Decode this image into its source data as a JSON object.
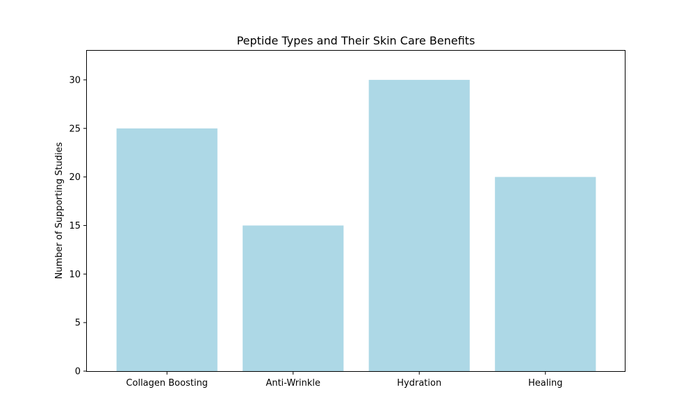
{
  "chart_data": {
    "type": "bar",
    "title": "Peptide Types and Their Skin Care Benefits",
    "xlabel": "",
    "ylabel": "Number of Supporting Studies",
    "categories": [
      "Collagen Boosting",
      "Anti-Wrinkle",
      "Hydration",
      "Healing"
    ],
    "values": [
      25,
      15,
      30,
      20
    ],
    "ylim": [
      0,
      33
    ],
    "yticks": [
      0,
      5,
      10,
      15,
      20,
      25,
      30
    ],
    "bar_color": "#add8e6",
    "grid": false,
    "legend": "none"
  }
}
